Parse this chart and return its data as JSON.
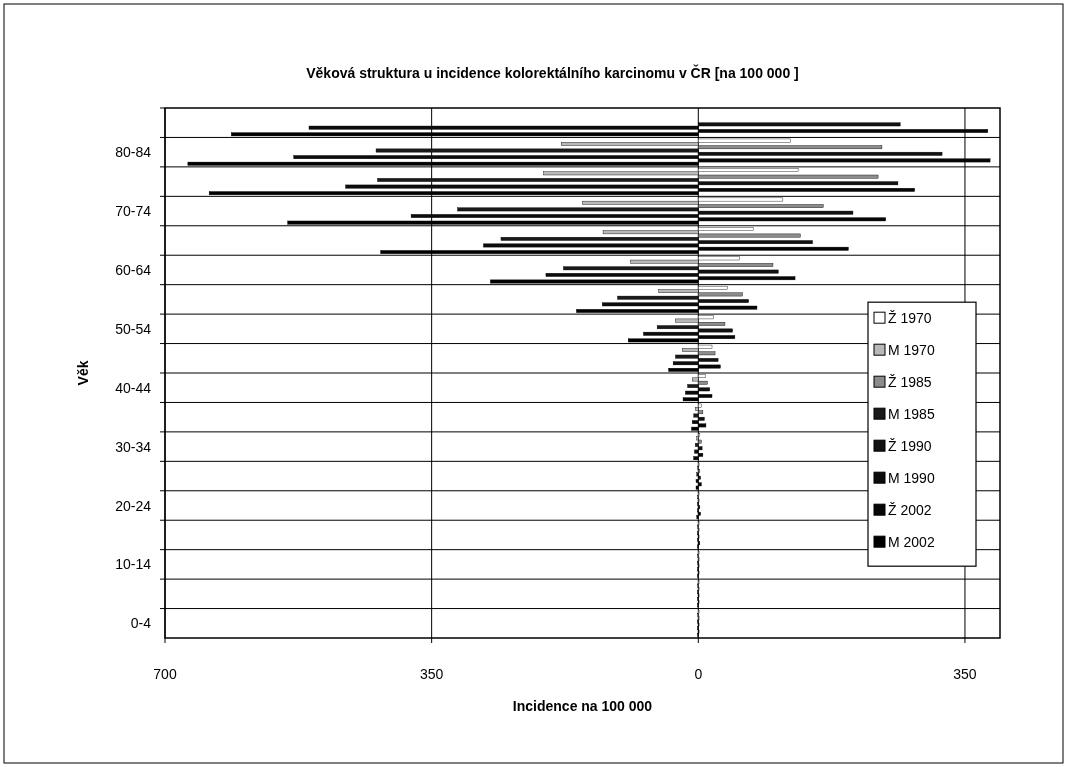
{
  "chart_data": {
    "type": "bar",
    "orientation": "horizontal",
    "title": "Věková struktura u incidence kolorektálního karcinomu v ČR [na 100 000 ]",
    "xlabel": "Incidence na 100 000",
    "ylabel": "Věk",
    "categories": [
      null,
      "80-84",
      null,
      "70-74",
      null,
      "60-64",
      null,
      "50-54",
      null,
      "40-44",
      null,
      "30-34",
      null,
      "20-24",
      null,
      "10-14",
      null,
      "0-4"
    ],
    "series": [
      {
        "name": "Ž 1970",
        "color": "#ffffff",
        "values": [
          null,
          121,
          131,
          111,
          72,
          54,
          38,
          20,
          18,
          9,
          4,
          2,
          1,
          1,
          1,
          1,
          1,
          1
        ]
      },
      {
        "name": "M 1970",
        "color": "#b8b8b8",
        "values": [
          null,
          -180,
          -203,
          -152,
          -125,
          -89,
          -52,
          -30,
          -21,
          -8,
          -4,
          -2,
          -1,
          -1,
          -1,
          -1,
          -1,
          -1
        ]
      },
      {
        "name": "Ž 1985",
        "color": "#8c8c8c",
        "values": [
          null,
          241,
          236,
          164,
          134,
          98,
          58,
          35,
          22,
          12,
          6,
          4,
          2,
          1,
          1,
          1,
          1,
          1
        ]
      },
      {
        "name": "M 1985",
        "color": "#1a1a1a",
        "values": [
          null,
          -423,
          -421,
          -316,
          -259,
          -177,
          -106,
          -54,
          -30,
          -14,
          -6,
          -4,
          -2,
          -1,
          -1,
          -1,
          -1,
          -1
        ]
      },
      {
        "name": "Ž 1990",
        "color": "#121212",
        "values": [
          265,
          320,
          262,
          203,
          150,
          105,
          66,
          45,
          26,
          15,
          8,
          5,
          3,
          2,
          1,
          1,
          1,
          1
        ]
      },
      {
        "name": "M 1990",
        "color": "#0c0c0c",
        "values": [
          -511,
          -531,
          -463,
          -377,
          -282,
          -200,
          -126,
          -72,
          -33,
          -17,
          -8,
          -5,
          -3,
          -1,
          -1,
          -1,
          -1,
          -1
        ]
      },
      {
        "name": "Ž 2002",
        "color": "#060606",
        "values": [
          380,
          383,
          284,
          246,
          197,
          127,
          77,
          48,
          29,
          18,
          10,
          6,
          4,
          3,
          2,
          1,
          1,
          1
        ]
      },
      {
        "name": "M 2002",
        "color": "#000000",
        "values": [
          -613,
          -670,
          -642,
          -539,
          -417,
          -273,
          -160,
          -92,
          -39,
          -20,
          -9,
          -6,
          -3,
          -2,
          -1,
          -1,
          -1,
          -1
        ]
      }
    ],
    "xlim": [
      -700,
      396
    ],
    "xticks": [
      {
        "value": -700,
        "label": "700"
      },
      {
        "value": -350,
        "label": "350"
      },
      0,
      350
    ],
    "grid": true,
    "legend": "right"
  }
}
